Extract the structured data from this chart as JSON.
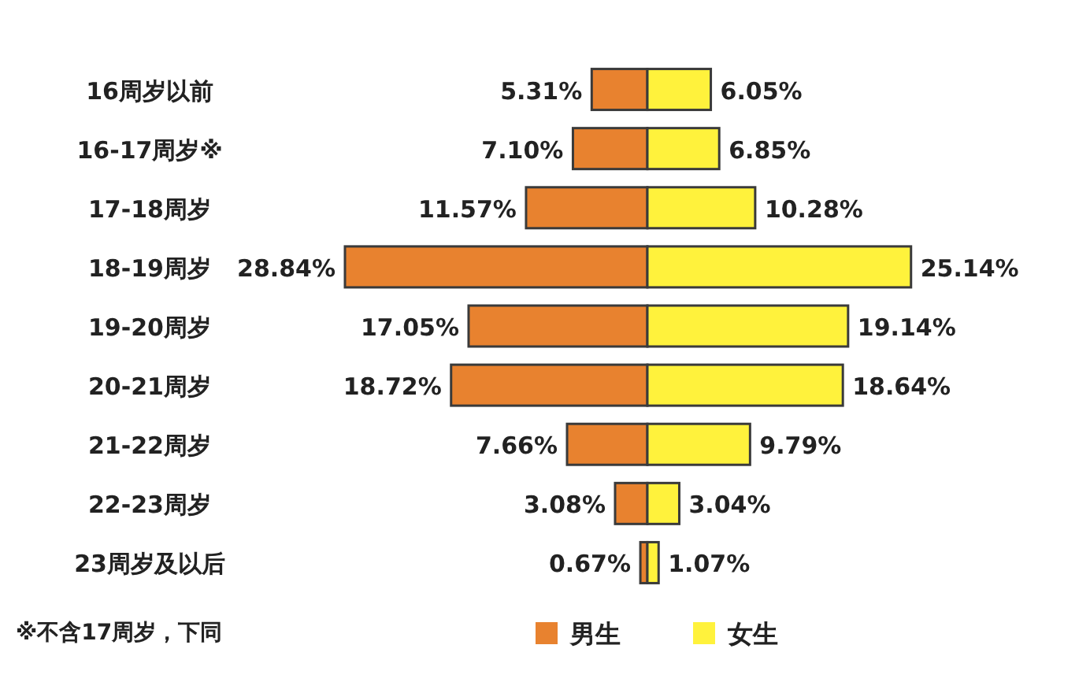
{
  "chart_data": [
    {
      "type": "bar",
      "orientation": "horizontal",
      "categories": [
        "16周岁以前",
        "16-17周岁※",
        "17-18周岁",
        "18-19周岁",
        "19-20周岁",
        "20-21周岁",
        "21-22周岁",
        "22-23周岁",
        "23周岁及以后"
      ],
      "series": [
        {
          "name": "男生",
          "color": "#e8822f",
          "values": [
            5.31,
            7.1,
            11.57,
            28.84,
            17.05,
            18.72,
            7.66,
            3.08,
            0.67
          ],
          "value_labels": [
            "5.31%",
            "7.10%",
            "11.57%",
            "28.84%",
            "17.05%",
            "18.72%",
            "7.66%",
            "3.08%",
            "0.67%"
          ]
        }
      ],
      "legend": "bottom",
      "annotations": [
        "※不含17周岁，下同"
      ]
    },
    {
      "type": "bar",
      "orientation": "horizontal",
      "categories": [
        null,
        null,
        null,
        null,
        null,
        null,
        null,
        null,
        null
      ],
      "series": [
        {
          "name": "女生",
          "color": "#fff23c",
          "values": [
            6.05,
            6.85,
            10.28,
            25.14,
            19.14,
            18.64,
            9.79,
            3.04,
            1.07
          ],
          "value_labels": [
            "6.05%",
            "6.85%",
            "10.28%",
            "25.14%",
            "19.14%",
            "18.64%",
            "9.79%",
            "3.04%",
            "1.07%"
          ]
        }
      ],
      "legend": "bottom"
    }
  ]
}
